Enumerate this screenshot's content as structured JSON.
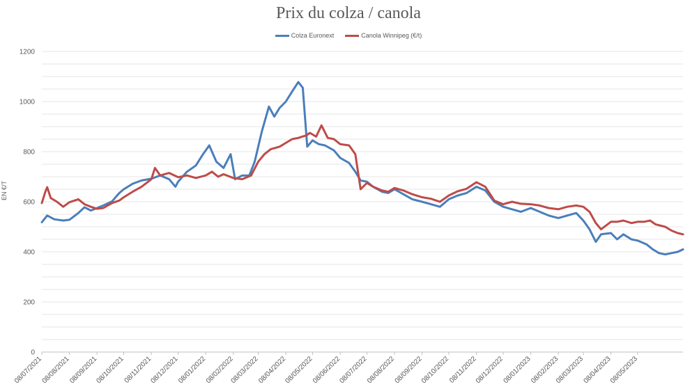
{
  "chart_data": {
    "type": "line",
    "title": "Prix du colza / canola",
    "ylabel": "EN €/T",
    "xlabel": "",
    "ylim": [
      0,
      1200
    ],
    "yticks": [
      0,
      200,
      400,
      600,
      800,
      1000,
      1200
    ],
    "grid": true,
    "legend_position": "top-center",
    "x_start": "08/07/2021",
    "x_end": "28/06/2023",
    "xticks": [
      "08/07/2021",
      "08/08/2021",
      "08/09/2021",
      "08/10/2021",
      "08/11/2021",
      "08/12/2021",
      "08/01/2022",
      "08/02/2022",
      "08/03/2022",
      "08/04/2022",
      "08/05/2022",
      "08/06/2022",
      "08/07/2022",
      "08/08/2022",
      "08/09/2022",
      "08/10/2022",
      "08/11/2022",
      "08/12/2022",
      "08/01/2023",
      "08/02/2023",
      "08/03/2023",
      "08/04/2023",
      "08/05/2023"
    ],
    "series": [
      {
        "name": "Colza Euronext",
        "color": "#4a7ebb",
        "points": [
          [
            "08/07/2021",
            518
          ],
          [
            "14/07/2021",
            545
          ],
          [
            "22/07/2021",
            530
          ],
          [
            "01/08/2021",
            525
          ],
          [
            "08/08/2021",
            528
          ],
          [
            "18/08/2021",
            555
          ],
          [
            "25/08/2021",
            578
          ],
          [
            "01/09/2021",
            565
          ],
          [
            "08/09/2021",
            575
          ],
          [
            "15/09/2021",
            585
          ],
          [
            "25/09/2021",
            602
          ],
          [
            "03/10/2021",
            635
          ],
          [
            "08/10/2021",
            650
          ],
          [
            "18/10/2021",
            672
          ],
          [
            "28/10/2021",
            685
          ],
          [
            "08/11/2021",
            692
          ],
          [
            "18/11/2021",
            705
          ],
          [
            "28/11/2021",
            690
          ],
          [
            "05/12/2021",
            660
          ],
          [
            "08/12/2021",
            680
          ],
          [
            "18/12/2021",
            720
          ],
          [
            "28/12/2021",
            745
          ],
          [
            "05/01/2022",
            790
          ],
          [
            "12/01/2022",
            825
          ],
          [
            "20/01/2022",
            760
          ],
          [
            "28/01/2022",
            735
          ],
          [
            "05/02/2022",
            790
          ],
          [
            "10/02/2022",
            690
          ],
          [
            "18/02/2022",
            705
          ],
          [
            "26/02/2022",
            705
          ],
          [
            "04/03/2022",
            760
          ],
          [
            "12/03/2022",
            880
          ],
          [
            "20/03/2022",
            980
          ],
          [
            "26/03/2022",
            940
          ],
          [
            "01/04/2022",
            975
          ],
          [
            "08/04/2022",
            1000
          ],
          [
            "15/04/2022",
            1040
          ],
          [
            "22/04/2022",
            1078
          ],
          [
            "27/04/2022",
            1055
          ],
          [
            "02/05/2022",
            820
          ],
          [
            "08/05/2022",
            845
          ],
          [
            "15/05/2022",
            830
          ],
          [
            "22/05/2022",
            825
          ],
          [
            "01/06/2022",
            805
          ],
          [
            "08/06/2022",
            775
          ],
          [
            "18/06/2022",
            755
          ],
          [
            "25/06/2022",
            720
          ],
          [
            "01/07/2022",
            685
          ],
          [
            "08/07/2022",
            680
          ],
          [
            "15/07/2022",
            660
          ],
          [
            "25/07/2022",
            640
          ],
          [
            "01/08/2022",
            635
          ],
          [
            "08/08/2022",
            650
          ],
          [
            "18/08/2022",
            630
          ],
          [
            "28/08/2022",
            610
          ],
          [
            "08/09/2022",
            600
          ],
          [
            "18/09/2022",
            590
          ],
          [
            "28/09/2022",
            580
          ],
          [
            "08/10/2022",
            610
          ],
          [
            "18/10/2022",
            625
          ],
          [
            "28/10/2022",
            635
          ],
          [
            "08/11/2022",
            660
          ],
          [
            "18/11/2022",
            645
          ],
          [
            "28/11/2022",
            600
          ],
          [
            "08/12/2022",
            580
          ],
          [
            "18/12/2022",
            570
          ],
          [
            "28/12/2022",
            560
          ],
          [
            "08/01/2023",
            575
          ],
          [
            "18/01/2023",
            560
          ],
          [
            "28/01/2023",
            545
          ],
          [
            "08/02/2023",
            535
          ],
          [
            "18/02/2023",
            545
          ],
          [
            "28/02/2023",
            555
          ],
          [
            "08/03/2023",
            525
          ],
          [
            "15/03/2023",
            490
          ],
          [
            "22/03/2023",
            440
          ],
          [
            "28/03/2023",
            470
          ],
          [
            "08/04/2023",
            475
          ],
          [
            "15/04/2023",
            450
          ],
          [
            "22/04/2023",
            470
          ],
          [
            "01/05/2023",
            450
          ],
          [
            "08/05/2023",
            445
          ],
          [
            "18/05/2023",
            430
          ],
          [
            "25/05/2023",
            410
          ],
          [
            "01/06/2023",
            395
          ],
          [
            "08/06/2023",
            390
          ],
          [
            "15/06/2023",
            395
          ],
          [
            "22/06/2023",
            400
          ],
          [
            "28/06/2023",
            410
          ]
        ]
      },
      {
        "name": "Canola Winnipeg (€/t)",
        "color": "#be4b48",
        "points": [
          [
            "08/07/2021",
            595
          ],
          [
            "12/07/2021",
            640
          ],
          [
            "14/07/2021",
            658
          ],
          [
            "18/07/2021",
            615
          ],
          [
            "25/07/2021",
            600
          ],
          [
            "01/08/2021",
            580
          ],
          [
            "08/08/2021",
            598
          ],
          [
            "18/08/2021",
            610
          ],
          [
            "25/08/2021",
            590
          ],
          [
            "01/09/2021",
            580
          ],
          [
            "08/09/2021",
            572
          ],
          [
            "15/09/2021",
            575
          ],
          [
            "25/09/2021",
            595
          ],
          [
            "03/10/2021",
            605
          ],
          [
            "08/10/2021",
            618
          ],
          [
            "18/10/2021",
            640
          ],
          [
            "28/10/2021",
            660
          ],
          [
            "08/11/2021",
            690
          ],
          [
            "12/11/2021",
            735
          ],
          [
            "18/11/2021",
            705
          ],
          [
            "28/11/2021",
            715
          ],
          [
            "08/12/2021",
            698
          ],
          [
            "18/12/2021",
            705
          ],
          [
            "28/12/2021",
            695
          ],
          [
            "08/01/2022",
            705
          ],
          [
            "15/01/2022",
            720
          ],
          [
            "22/01/2022",
            700
          ],
          [
            "28/01/2022",
            710
          ],
          [
            "08/02/2022",
            695
          ],
          [
            "18/02/2022",
            690
          ],
          [
            "28/02/2022",
            705
          ],
          [
            "08/03/2022",
            760
          ],
          [
            "15/03/2022",
            790
          ],
          [
            "22/03/2022",
            810
          ],
          [
            "01/04/2022",
            820
          ],
          [
            "08/04/2022",
            835
          ],
          [
            "15/04/2022",
            850
          ],
          [
            "22/04/2022",
            855
          ],
          [
            "01/05/2022",
            865
          ],
          [
            "05/05/2022",
            875
          ],
          [
            "12/05/2022",
            860
          ],
          [
            "18/05/2022",
            905
          ],
          [
            "25/05/2022",
            855
          ],
          [
            "01/06/2022",
            850
          ],
          [
            "08/06/2022",
            830
          ],
          [
            "18/06/2022",
            825
          ],
          [
            "25/06/2022",
            790
          ],
          [
            "01/07/2022",
            650
          ],
          [
            "08/07/2022",
            675
          ],
          [
            "15/07/2022",
            660
          ],
          [
            "25/07/2022",
            645
          ],
          [
            "01/08/2022",
            640
          ],
          [
            "08/08/2022",
            655
          ],
          [
            "18/08/2022",
            645
          ],
          [
            "28/08/2022",
            630
          ],
          [
            "08/09/2022",
            618
          ],
          [
            "18/09/2022",
            612
          ],
          [
            "28/09/2022",
            600
          ],
          [
            "08/10/2022",
            625
          ],
          [
            "18/10/2022",
            642
          ],
          [
            "28/10/2022",
            652
          ],
          [
            "08/11/2022",
            678
          ],
          [
            "18/11/2022",
            660
          ],
          [
            "28/11/2022",
            605
          ],
          [
            "08/12/2022",
            590
          ],
          [
            "18/12/2022",
            600
          ],
          [
            "28/12/2022",
            592
          ],
          [
            "08/01/2023",
            590
          ],
          [
            "18/01/2023",
            585
          ],
          [
            "28/01/2023",
            575
          ],
          [
            "08/02/2023",
            570
          ],
          [
            "18/02/2023",
            580
          ],
          [
            "28/02/2023",
            585
          ],
          [
            "08/03/2023",
            580
          ],
          [
            "15/03/2023",
            560
          ],
          [
            "22/03/2023",
            515
          ],
          [
            "28/03/2023",
            490
          ],
          [
            "08/04/2023",
            520
          ],
          [
            "15/04/2023",
            520
          ],
          [
            "22/04/2023",
            525
          ],
          [
            "01/05/2023",
            515
          ],
          [
            "08/05/2023",
            520
          ],
          [
            "15/05/2023",
            520
          ],
          [
            "22/05/2023",
            525
          ],
          [
            "28/05/2023",
            510
          ],
          [
            "08/06/2023",
            500
          ],
          [
            "15/06/2023",
            485
          ],
          [
            "22/06/2023",
            475
          ],
          [
            "28/06/2023",
            470
          ]
        ]
      }
    ]
  }
}
